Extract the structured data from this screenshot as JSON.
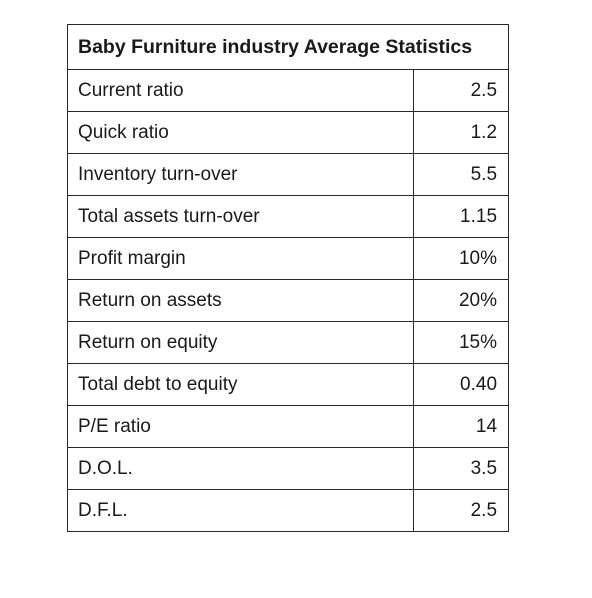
{
  "table": {
    "title": "Baby Furniture industry Average Statistics",
    "rows": [
      {
        "label": "Current ratio",
        "value": "2.5"
      },
      {
        "label": "Quick ratio",
        "value": "1.2"
      },
      {
        "label": "Inventory turn-over",
        "value": "5.5"
      },
      {
        "label": "Total assets turn-over",
        "value": "1.15"
      },
      {
        "label": "Profit margin",
        "value": "10%"
      },
      {
        "label": "Return on assets",
        "value": "20%"
      },
      {
        "label": "Return on equity",
        "value": "15%"
      },
      {
        "label": "Total debt to equity",
        "value": "0.40"
      },
      {
        "label": "P/E ratio",
        "value": "14"
      },
      {
        "label": "D.O.L.",
        "value": "3.5"
      },
      {
        "label": "D.F.L.",
        "value": "2.5"
      }
    ]
  }
}
